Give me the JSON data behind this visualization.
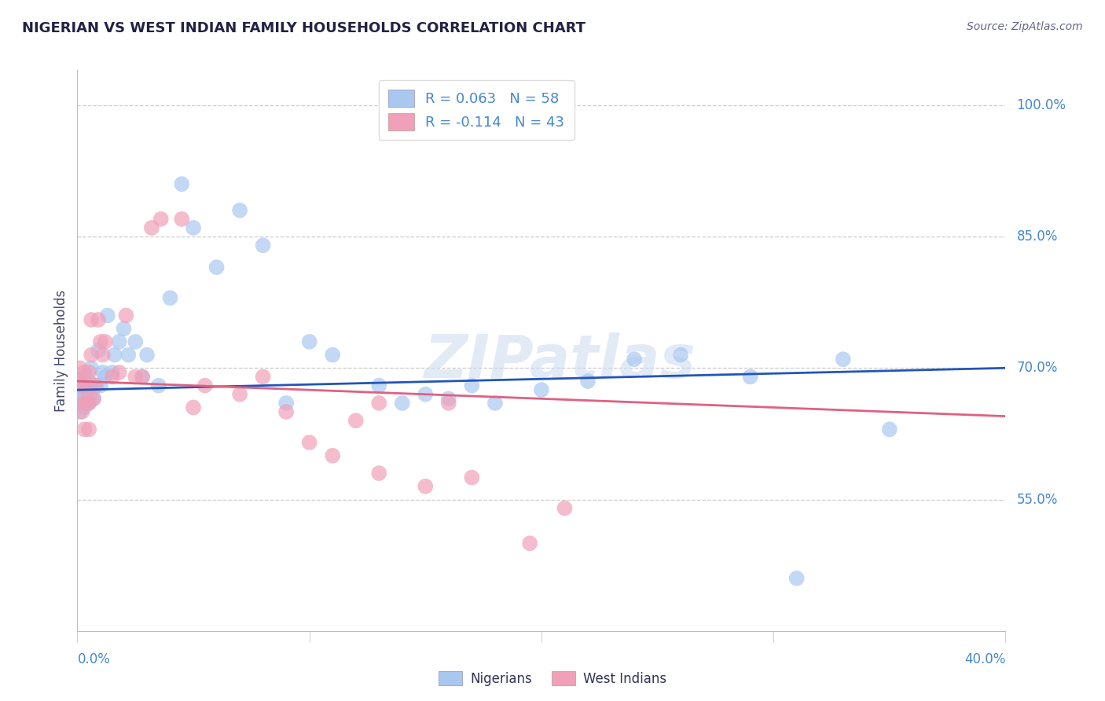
{
  "title": "NIGERIAN VS WEST INDIAN FAMILY HOUSEHOLDS CORRELATION CHART",
  "source": "Source: ZipAtlas.com",
  "ylabel": "Family Households",
  "watermark": "ZIPatlas",
  "xlim": [
    0.0,
    0.4
  ],
  "ylim": [
    0.4,
    1.04
  ],
  "yticks": [
    0.55,
    0.7,
    0.85,
    1.0
  ],
  "ytick_labels": [
    "55.0%",
    "70.0%",
    "85.0%",
    "100.0%"
  ],
  "nigerian_color": "#a8c8f0",
  "westindian_color": "#f0a0b8",
  "nigerian_line_color": "#2255bb",
  "westindian_line_color": "#e06080",
  "title_color": "#222244",
  "source_color": "#666688",
  "nigerian_line_x0": 0.0,
  "nigerian_line_x1": 0.4,
  "nigerian_line_y0": 0.675,
  "nigerian_line_y1": 0.7,
  "westindian_line_x0": 0.0,
  "westindian_line_x1": 0.4,
  "westindian_line_y0": 0.685,
  "westindian_line_y1": 0.645,
  "legend_label_nig": "R = 0.063   N = 58",
  "legend_label_wi": "R = -0.114   N = 43",
  "nigerian_x": [
    0.001,
    0.001,
    0.002,
    0.002,
    0.002,
    0.003,
    0.003,
    0.003,
    0.003,
    0.004,
    0.004,
    0.004,
    0.005,
    0.005,
    0.005,
    0.006,
    0.006,
    0.006,
    0.007,
    0.007,
    0.008,
    0.009,
    0.01,
    0.011,
    0.012,
    0.013,
    0.015,
    0.016,
    0.018,
    0.02,
    0.022,
    0.025,
    0.028,
    0.03,
    0.035,
    0.04,
    0.045,
    0.05,
    0.06,
    0.07,
    0.08,
    0.09,
    0.1,
    0.11,
    0.13,
    0.16,
    0.2,
    0.22,
    0.26,
    0.31,
    0.33,
    0.35,
    0.15,
    0.18,
    0.24,
    0.29,
    0.14,
    0.17
  ],
  "nigerian_y": [
    0.66,
    0.65,
    0.665,
    0.67,
    0.685,
    0.655,
    0.665,
    0.68,
    0.69,
    0.66,
    0.67,
    0.68,
    0.66,
    0.67,
    0.685,
    0.665,
    0.68,
    0.7,
    0.665,
    0.68,
    0.68,
    0.72,
    0.68,
    0.695,
    0.69,
    0.76,
    0.695,
    0.715,
    0.73,
    0.745,
    0.715,
    0.73,
    0.69,
    0.715,
    0.68,
    0.78,
    0.91,
    0.86,
    0.815,
    0.88,
    0.84,
    0.66,
    0.73,
    0.715,
    0.68,
    0.665,
    0.675,
    0.685,
    0.715,
    0.46,
    0.71,
    0.63,
    0.67,
    0.66,
    0.71,
    0.69,
    0.66,
    0.68
  ],
  "westindian_x": [
    0.001,
    0.001,
    0.002,
    0.002,
    0.003,
    0.003,
    0.003,
    0.004,
    0.004,
    0.005,
    0.005,
    0.005,
    0.006,
    0.006,
    0.007,
    0.008,
    0.009,
    0.01,
    0.011,
    0.012,
    0.015,
    0.018,
    0.021,
    0.025,
    0.028,
    0.032,
    0.036,
    0.045,
    0.055,
    0.09,
    0.11,
    0.13,
    0.15,
    0.17,
    0.195,
    0.21,
    0.13,
    0.16,
    0.05,
    0.07,
    0.08,
    0.1,
    0.12
  ],
  "westindian_y": [
    0.685,
    0.7,
    0.65,
    0.68,
    0.63,
    0.66,
    0.695,
    0.66,
    0.675,
    0.63,
    0.66,
    0.695,
    0.715,
    0.755,
    0.665,
    0.68,
    0.755,
    0.73,
    0.715,
    0.73,
    0.69,
    0.695,
    0.76,
    0.69,
    0.69,
    0.86,
    0.87,
    0.87,
    0.68,
    0.65,
    0.6,
    0.58,
    0.565,
    0.575,
    0.5,
    0.54,
    0.66,
    0.66,
    0.655,
    0.67,
    0.69,
    0.615,
    0.64
  ],
  "background_color": "#ffffff",
  "grid_color": "#cccccc"
}
